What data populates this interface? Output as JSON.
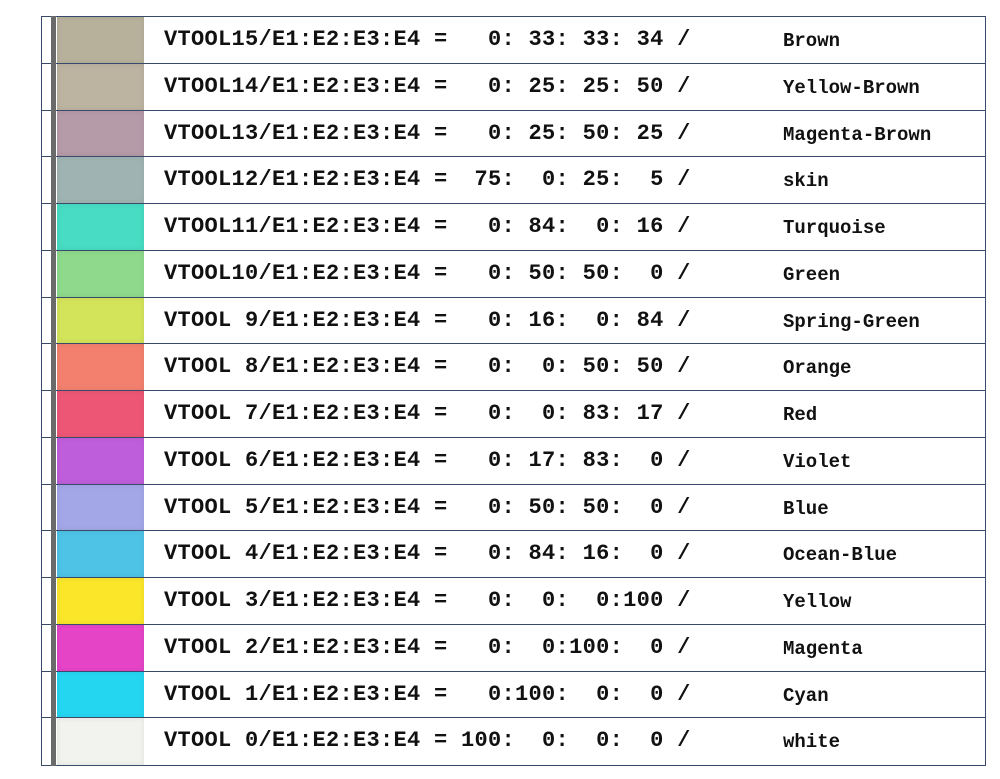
{
  "rows": [
    {
      "code": "VTOOL15/E1:E2:E3:E4 =   0: 33: 33: 34 /",
      "name": "Brown",
      "color": "#b7b19c"
    },
    {
      "code": "VTOOL14/E1:E2:E3:E4 =   0: 25: 25: 50 /",
      "name": "Yellow-Brown",
      "color": "#bcb3a1"
    },
    {
      "code": "VTOOL13/E1:E2:E3:E4 =   0: 25: 50: 25 /",
      "name": "Magenta-Brown",
      "color": "#b59aa8"
    },
    {
      "code": "VTOOL12/E1:E2:E3:E4 =  75:  0: 25:  5 /",
      "name": "skin",
      "color": "#9fb4b2"
    },
    {
      "code": "VTOOL11/E1:E2:E3:E4 =   0: 84:  0: 16 /",
      "name": "Turquoise",
      "color": "#47dcc3"
    },
    {
      "code": "VTOOL10/E1:E2:E3:E4 =   0: 50: 50:  0 /",
      "name": "Green",
      "color": "#8ed98b"
    },
    {
      "code": "VTOOL 9/E1:E2:E3:E4 =   0: 16:  0: 84 /",
      "name": "Spring-Green",
      "color": "#d3e45a"
    },
    {
      "code": "VTOOL 8/E1:E2:E3:E4 =   0:  0: 50: 50 /",
      "name": "Orange",
      "color": "#f3806f"
    },
    {
      "code": "VTOOL 7/E1:E2:E3:E4 =   0:  0: 83: 17 /",
      "name": "Red",
      "color": "#ee5676"
    },
    {
      "code": "VTOOL 6/E1:E2:E3:E4 =   0: 17: 83:  0 /",
      "name": "Violet",
      "color": "#bf5edb"
    },
    {
      "code": "VTOOL 5/E1:E2:E3:E4 =   0: 50: 50:  0 /",
      "name": "Blue",
      "color": "#a3a7e8"
    },
    {
      "code": "VTOOL 4/E1:E2:E3:E4 =   0: 84: 16:  0 /",
      "name": "Ocean-Blue",
      "color": "#4ec3e6"
    },
    {
      "code": "VTOOL 3/E1:E2:E3:E4 =   0:  0:  0:100 /",
      "name": "Yellow",
      "color": "#fbe62a"
    },
    {
      "code": "VTOOL 2/E1:E2:E3:E4 =   0:  0:100:  0 /",
      "name": "Magenta",
      "color": "#e544c7"
    },
    {
      "code": "VTOOL 1/E1:E2:E3:E4 =   0:100:  0:  0 /",
      "name": "Cyan",
      "color": "#25d6f1"
    },
    {
      "code": "VTOOL 0/E1:E2:E3:E4 = 100:  0:  0:  0 /",
      "name": "white",
      "color": "#f2f2ee"
    }
  ]
}
